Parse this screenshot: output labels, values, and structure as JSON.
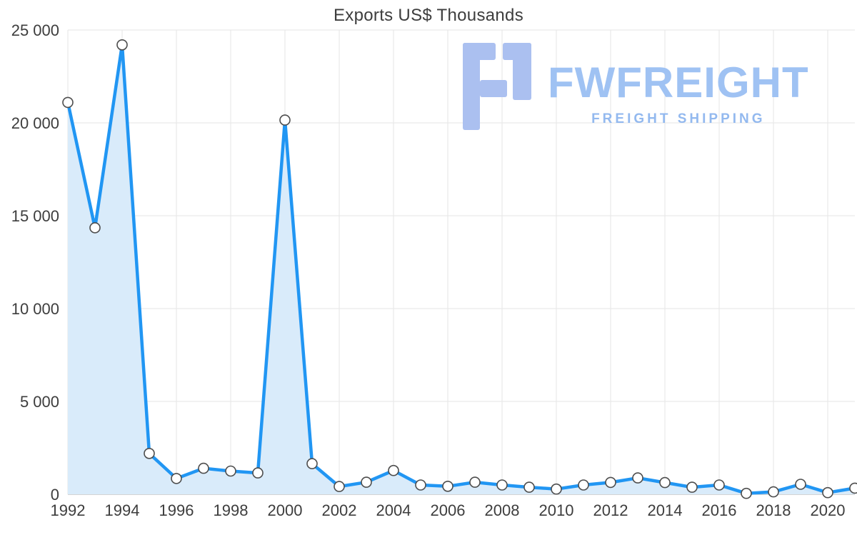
{
  "chart_data": {
    "type": "area",
    "title": "Exports US$ Thousands",
    "x": [
      1992,
      1993,
      1994,
      1995,
      1996,
      1997,
      1998,
      1999,
      2000,
      2001,
      2002,
      2003,
      2004,
      2005,
      2006,
      2007,
      2008,
      2009,
      2010,
      2011,
      2012,
      2013,
      2014,
      2015,
      2016,
      2017,
      2018,
      2019,
      2020,
      2021
    ],
    "values": [
      21100,
      14350,
      24200,
      2200,
      850,
      1400,
      1250,
      1150,
      20150,
      1650,
      420,
      650,
      1280,
      500,
      430,
      650,
      500,
      380,
      280,
      500,
      640,
      880,
      630,
      380,
      500,
      50,
      130,
      540,
      90,
      330
    ],
    "xlabel": "",
    "ylabel": "",
    "xlim": [
      1992,
      2021
    ],
    "ylim": [
      0,
      25000
    ],
    "y_ticks": [
      0,
      5000,
      10000,
      15000,
      20000,
      25000
    ],
    "y_tick_labels": [
      "0",
      "5 000",
      "10 000",
      "15 000",
      "20 000",
      "25 000"
    ],
    "x_tick_years": [
      1992,
      1994,
      1996,
      1998,
      2000,
      2002,
      2004,
      2006,
      2008,
      2010,
      2012,
      2014,
      2016,
      2018,
      2020
    ],
    "grid": true,
    "legend": "none",
    "line_color": "#2196f3",
    "area_fill": "#d9ebfa",
    "marker_fill": "#ffffff",
    "marker_stroke": "#4d4d4d",
    "gridline_color": "#e6e6e6",
    "baseline_color": "#a9a9a9"
  },
  "watermark": {
    "brand": "FWFREIGHT",
    "tagline": "FREIGHT SHIPPING",
    "logo_color": "#abc0f0"
  }
}
